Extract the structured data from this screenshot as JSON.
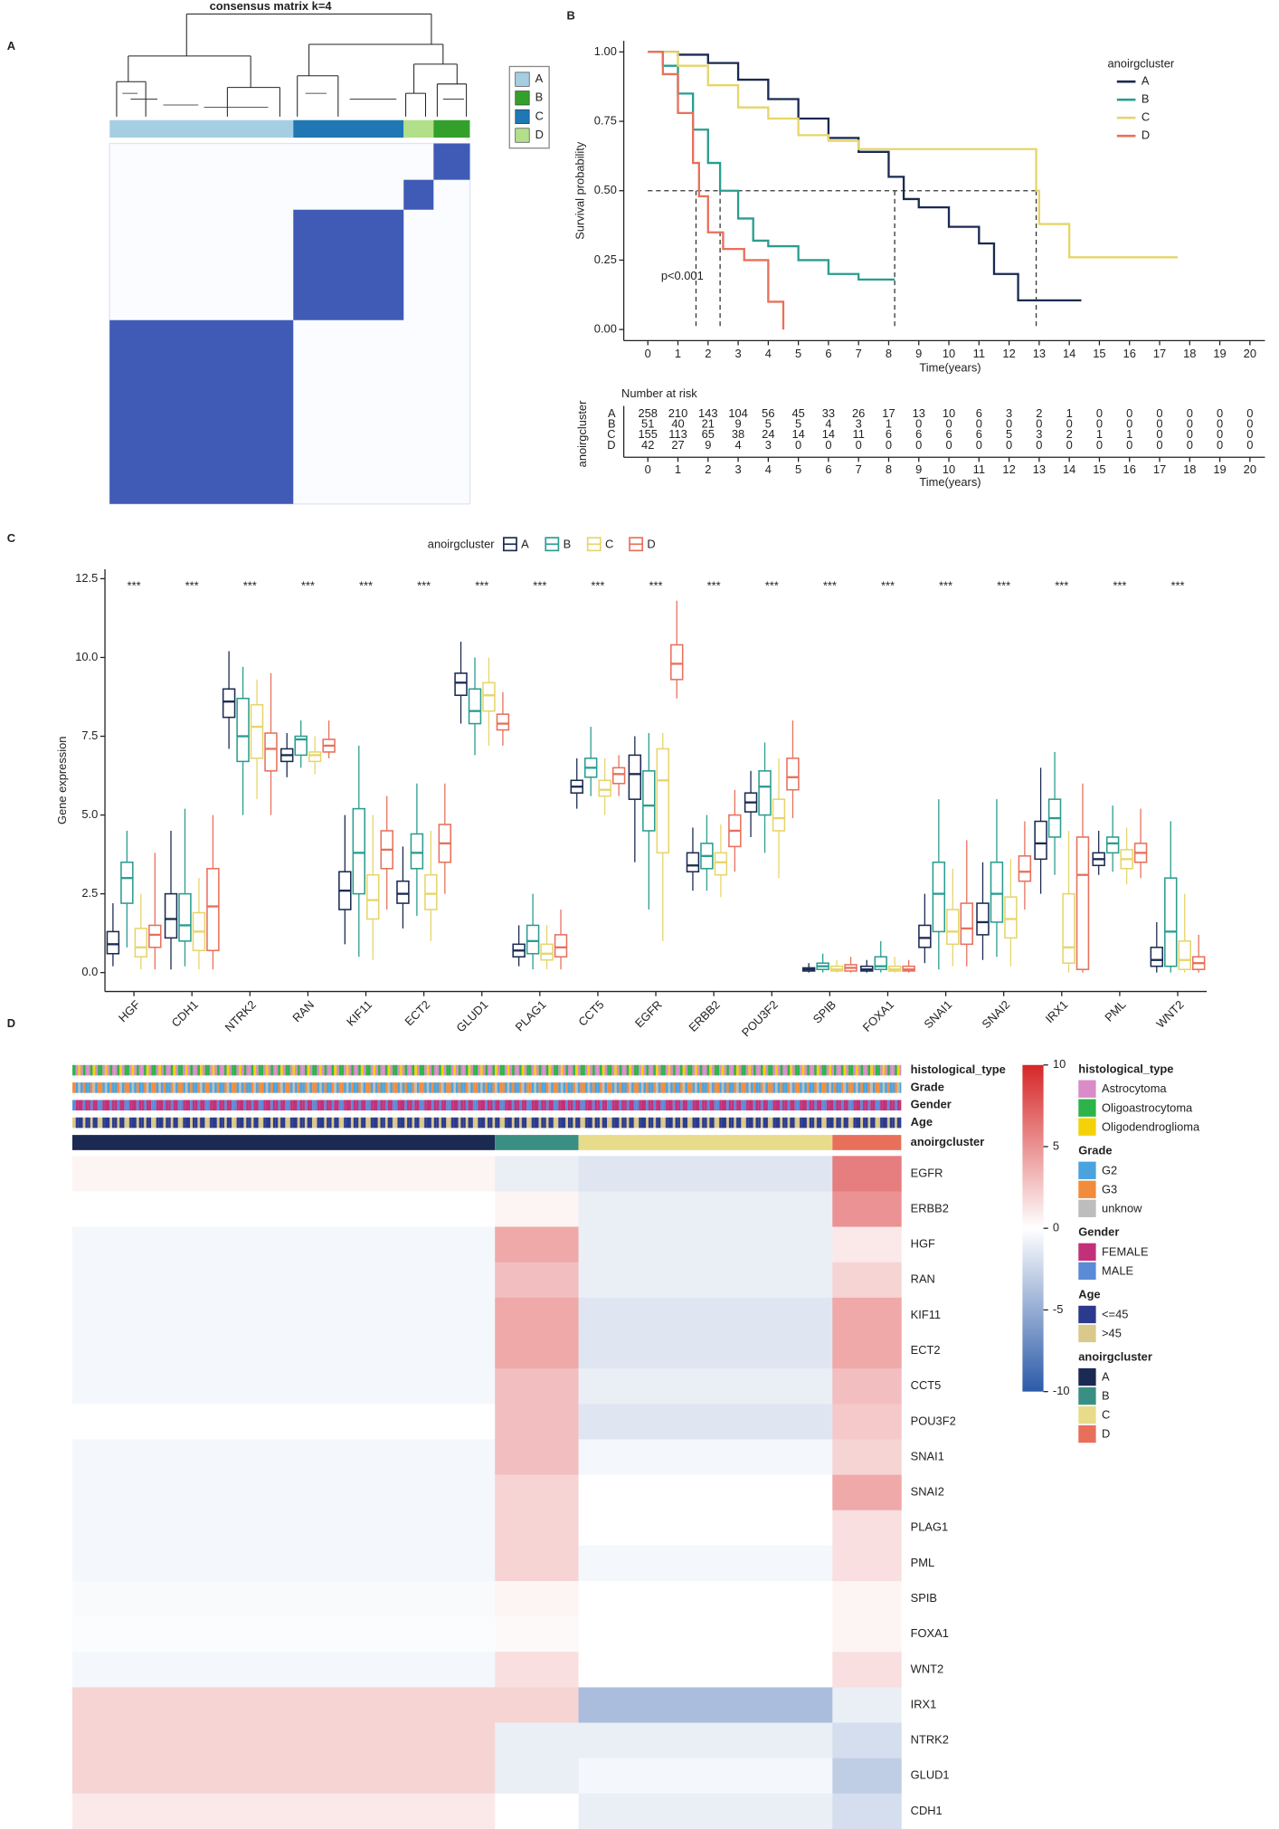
{
  "chart_data": [
    {
      "type": "consensus",
      "panel": "A",
      "title": "consensus matrix k=4",
      "matrix_color": "#3f5bb5",
      "clusters": [
        {
          "name": "A",
          "color": "#a6cee3",
          "size": 258
        },
        {
          "name": "C",
          "color": "#1f78b4",
          "size": 155
        },
        {
          "name": "D",
          "color": "#b2df8a",
          "size": 42
        },
        {
          "name": "B",
          "color": "#33a02c",
          "size": 51
        }
      ]
    },
    {
      "type": "survival",
      "panel": "B",
      "ylabel": "Survival probability",
      "xlabel": "Time(years)",
      "legend_title": "anoirgcluster",
      "annotation": "p<0.001",
      "xlim": [
        -0.8,
        20.5
      ],
      "xticks": [
        0,
        1,
        2,
        3,
        4,
        5,
        6,
        7,
        8,
        9,
        10,
        11,
        12,
        13,
        14,
        15,
        16,
        17,
        18,
        19,
        20
      ],
      "ylim": [
        -0.04,
        1.04
      ],
      "yticks": [
        {
          "value": 0,
          "label": "0.00"
        },
        {
          "value": 0.25,
          "label": "0.25"
        },
        {
          "value": 0.5,
          "label": "0.50"
        },
        {
          "value": 0.75,
          "label": "0.75"
        },
        {
          "value": 1,
          "label": "1.00"
        }
      ],
      "median_level": 0.5,
      "series": [
        {
          "name": "A",
          "color": "#1b2a52",
          "median": 8.2,
          "x": [
            0,
            1,
            2,
            3,
            4,
            5,
            6,
            7,
            8,
            8.5,
            9,
            10,
            11,
            11.5,
            12.3,
            14.4
          ],
          "values": [
            1,
            0.99,
            0.96,
            0.9,
            0.83,
            0.76,
            0.69,
            0.64,
            0.55,
            0.47,
            0.44,
            0.37,
            0.31,
            0.2,
            0.105,
            0.105
          ]
        },
        {
          "name": "B",
          "color": "#2a9d8f",
          "median": 2.4,
          "x": [
            0,
            0.5,
            1,
            1.5,
            2,
            2.4,
            3,
            3.5,
            4,
            5,
            6,
            7,
            8.2
          ],
          "values": [
            1,
            0.95,
            0.85,
            0.72,
            0.6,
            0.5,
            0.4,
            0.32,
            0.3,
            0.25,
            0.2,
            0.18,
            0.18
          ]
        },
        {
          "name": "C",
          "color": "#e6d56a",
          "median": 12.9,
          "x": [
            0,
            1,
            2,
            3,
            4,
            5,
            6,
            7,
            12.3,
            12.9,
            13,
            14,
            17.6
          ],
          "values": [
            1,
            0.95,
            0.88,
            0.8,
            0.76,
            0.7,
            0.68,
            0.65,
            0.65,
            0.5,
            0.38,
            0.26,
            0.26
          ]
        },
        {
          "name": "D",
          "color": "#e8705b",
          "median": 1.6,
          "x": [
            0,
            0.5,
            1,
            1.5,
            1.7,
            2,
            2.5,
            3,
            3.2,
            4,
            4.5
          ],
          "values": [
            1,
            0.92,
            0.78,
            0.6,
            0.48,
            0.35,
            0.29,
            0.29,
            0.25,
            0.1,
            0
          ]
        }
      ],
      "risk_table": {
        "title": "Number at risk",
        "ylabel": "anoirgcluster",
        "counts": [
          [
            258,
            210,
            143,
            104,
            56,
            45,
            33,
            26,
            17,
            13,
            10,
            6,
            3,
            2,
            1,
            0,
            0,
            0,
            0,
            0,
            0
          ],
          [
            51,
            40,
            21,
            9,
            5,
            5,
            4,
            3,
            1,
            0,
            0,
            0,
            0,
            0,
            0,
            0,
            0,
            0,
            0,
            0,
            0
          ],
          [
            155,
            113,
            65,
            38,
            24,
            14,
            14,
            11,
            6,
            6,
            6,
            6,
            5,
            3,
            2,
            1,
            1,
            0,
            0,
            0,
            0
          ],
          [
            42,
            27,
            9,
            4,
            3,
            0,
            0,
            0,
            0,
            0,
            0,
            0,
            0,
            0,
            0,
            0,
            0,
            0,
            0,
            0,
            0
          ]
        ]
      }
    },
    {
      "type": "box",
      "panel": "C",
      "ylabel": "Gene expression",
      "legend_title": "anoirgcluster",
      "categories": [
        "HGF",
        "CDH1",
        "NTRK2",
        "RAN",
        "KIF11",
        "ECT2",
        "GLUD1",
        "PLAG1",
        "CCT5",
        "EGFR",
        "ERBB2",
        "POU3F2",
        "SPIB",
        "FOXA1",
        "SNAI1",
        "SNAI2",
        "IRX1",
        "PML",
        "WNT2"
      ],
      "significance": [
        "***",
        "***",
        "***",
        "***",
        "***",
        "***",
        "***",
        "***",
        "***",
        "***",
        "***",
        "***",
        "***",
        "***",
        "***",
        "***",
        "***",
        "***",
        "***"
      ],
      "ylim": [
        -0.6,
        12.8
      ],
      "yticks": [
        {
          "value": 0,
          "label": "0.0"
        },
        {
          "value": 2.5,
          "label": "2.5"
        },
        {
          "value": 5,
          "label": "5.0"
        },
        {
          "value": 7.5,
          "label": "7.5"
        },
        {
          "value": 10,
          "label": "10.0"
        },
        {
          "value": 12.5,
          "label": "12.5"
        }
      ],
      "series": [
        {
          "name": "A",
          "color": "#1b2a52",
          "median": [
            0.9,
            1.7,
            8.6,
            6.9,
            2.6,
            2.5,
            9.2,
            0.7,
            5.9,
            6.3,
            3.4,
            5.4,
            0.1,
            0.1,
            1.1,
            1.6,
            4.1,
            3.6,
            0.4
          ],
          "q1": [
            0.6,
            1.1,
            8.1,
            6.7,
            2.0,
            2.2,
            8.8,
            0.5,
            5.7,
            5.5,
            3.2,
            5.1,
            0.05,
            0.05,
            0.8,
            1.2,
            3.6,
            3.4,
            0.2
          ],
          "q3": [
            1.3,
            2.5,
            9.0,
            7.1,
            3.2,
            2.9,
            9.5,
            0.9,
            6.1,
            6.9,
            3.8,
            5.7,
            0.15,
            0.2,
            1.5,
            2.2,
            4.8,
            3.8,
            0.8
          ],
          "low": [
            0.2,
            0.1,
            7.1,
            6.2,
            0.9,
            1.4,
            7.9,
            0.2,
            5.2,
            3.5,
            2.6,
            4.3,
            0,
            0,
            0.3,
            0.4,
            2.5,
            3.1,
            0
          ],
          "high": [
            2.2,
            4.5,
            10.2,
            7.6,
            5.0,
            4.0,
            10.5,
            1.5,
            6.8,
            7.5,
            4.6,
            6.4,
            0.3,
            0.4,
            2.5,
            3.5,
            6.5,
            4.5,
            1.6
          ]
        },
        {
          "name": "B",
          "color": "#2a9d8f",
          "median": [
            3.0,
            1.5,
            7.5,
            7.4,
            3.8,
            3.8,
            8.3,
            1.0,
            6.5,
            5.3,
            3.7,
            5.9,
            0.2,
            0.2,
            2.5,
            2.5,
            4.9,
            4.1,
            1.3
          ],
          "q1": [
            2.2,
            1.0,
            6.7,
            6.9,
            2.5,
            3.3,
            7.9,
            0.6,
            6.2,
            4.5,
            3.3,
            5.0,
            0.1,
            0.1,
            1.3,
            1.6,
            4.3,
            3.8,
            0.2
          ],
          "q3": [
            3.5,
            2.5,
            8.7,
            7.5,
            5.2,
            4.4,
            9.0,
            1.5,
            6.8,
            6.4,
            4.1,
            6.4,
            0.3,
            0.5,
            3.5,
            3.5,
            5.5,
            4.3,
            3.0
          ],
          "low": [
            0.8,
            0.2,
            5.0,
            6.5,
            0.5,
            1.8,
            6.9,
            0.1,
            5.6,
            2.0,
            2.6,
            3.8,
            0,
            0,
            0.1,
            0.5,
            3.1,
            3.2,
            0
          ],
          "high": [
            4.5,
            5.2,
            9.7,
            8.0,
            7.2,
            6.0,
            10.0,
            2.5,
            7.8,
            7.6,
            5.0,
            7.3,
            0.6,
            1.0,
            5.5,
            5.5,
            7.0,
            5.3,
            4.8
          ]
        },
        {
          "name": "C",
          "color": "#e6d56a",
          "median": [
            0.8,
            1.3,
            7.8,
            6.9,
            2.3,
            2.5,
            8.8,
            0.6,
            5.8,
            6.1,
            3.5,
            4.9,
            0.1,
            0.1,
            1.3,
            1.7,
            0.8,
            3.6,
            0.4
          ],
          "q1": [
            0.5,
            0.7,
            6.8,
            6.7,
            1.7,
            2.0,
            8.3,
            0.4,
            5.6,
            3.8,
            3.1,
            4.5,
            0.05,
            0.05,
            0.9,
            1.1,
            0.3,
            3.3,
            0.1
          ],
          "q3": [
            1.4,
            1.9,
            8.5,
            7.0,
            3.1,
            3.1,
            9.2,
            0.9,
            6.1,
            7.1,
            3.8,
            5.5,
            0.2,
            0.2,
            2.0,
            2.4,
            2.5,
            3.9,
            1.0
          ],
          "low": [
            0.1,
            0.1,
            5.5,
            6.3,
            0.4,
            1.0,
            7.2,
            0.1,
            5.0,
            1.0,
            2.4,
            3.0,
            0,
            0,
            0.2,
            0.2,
            0,
            2.8,
            0
          ],
          "high": [
            2.5,
            3.0,
            9.3,
            7.5,
            5.0,
            4.5,
            10.0,
            1.5,
            6.8,
            7.6,
            4.7,
            6.8,
            0.4,
            0.5,
            3.3,
            3.6,
            4.5,
            4.6,
            2.5
          ]
        },
        {
          "name": "D",
          "color": "#e8705b",
          "median": [
            1.2,
            2.1,
            7.1,
            7.2,
            3.9,
            4.1,
            7.9,
            0.8,
            6.3,
            9.8,
            4.5,
            6.2,
            0.15,
            0.1,
            1.4,
            3.2,
            3.1,
            3.8,
            0.3
          ],
          "q1": [
            0.8,
            0.7,
            6.4,
            7.0,
            3.3,
            3.5,
            7.7,
            0.5,
            6.0,
            9.3,
            4.0,
            5.8,
            0.05,
            0.05,
            0.9,
            2.9,
            0.1,
            3.5,
            0.1
          ],
          "q3": [
            1.5,
            3.3,
            7.6,
            7.4,
            4.5,
            4.7,
            8.2,
            1.2,
            6.5,
            10.4,
            5.0,
            6.8,
            0.25,
            0.2,
            2.2,
            3.7,
            4.3,
            4.1,
            0.5
          ],
          "low": [
            0.1,
            0.1,
            5.0,
            6.8,
            2.0,
            2.5,
            7.2,
            0.1,
            5.6,
            8.7,
            3.2,
            4.9,
            0,
            0,
            0.2,
            2.0,
            0,
            3.0,
            0
          ],
          "high": [
            3.8,
            5.0,
            9.5,
            8.0,
            5.6,
            6.0,
            8.9,
            2.0,
            6.9,
            11.8,
            5.8,
            8.0,
            0.5,
            0.4,
            4.2,
            4.8,
            6.0,
            5.2,
            1.2
          ]
        }
      ]
    },
    {
      "type": "heatmap",
      "panel": "D",
      "rows": [
        "EGFR",
        "ERBB2",
        "HGF",
        "RAN",
        "KIF11",
        "ECT2",
        "CCT5",
        "POU3F2",
        "SNAI1",
        "SNAI2",
        "PLAG1",
        "PML",
        "SPIB",
        "FOXA1",
        "WNT2",
        "IRX1",
        "NTRK2",
        "GLUD1",
        "CDH1"
      ],
      "values": [
        [
          0.5,
          -1,
          -1.5,
          6
        ],
        [
          0,
          0.5,
          -1,
          5
        ],
        [
          -0.5,
          4,
          -1,
          1
        ],
        [
          -0.5,
          3,
          -1,
          2
        ],
        [
          -0.5,
          4,
          -1.5,
          4
        ],
        [
          -0.5,
          4,
          -1.5,
          4
        ],
        [
          -0.5,
          3,
          -1,
          3
        ],
        [
          0,
          3,
          -1.5,
          2.5
        ],
        [
          -0.5,
          3,
          -0.5,
          2
        ],
        [
          -0.5,
          2,
          0,
          4
        ],
        [
          -0.5,
          2,
          0,
          1.5
        ],
        [
          -0.5,
          2,
          -0.5,
          1.5
        ],
        [
          -0.3,
          0.5,
          0,
          0.5
        ],
        [
          -0.2,
          0.3,
          0,
          0.5
        ],
        [
          -0.5,
          1.5,
          0,
          1.5
        ],
        [
          2,
          2,
          -4,
          -1
        ],
        [
          2,
          -1,
          -1,
          -2
        ],
        [
          2,
          -1,
          -0.5,
          -3
        ],
        [
          1,
          0,
          -1,
          -2
        ]
      ],
      "colorbar": {
        "lim": [
          -10,
          10
        ],
        "ticks": [
          -10,
          -5,
          0,
          5,
          10
        ],
        "colors": [
          "#2c5aa8",
          "#ffffff",
          "#d62728"
        ]
      },
      "tracks": [
        {
          "name": "histological_type",
          "items": [
            {
              "name": "Astrocytoma",
              "color": "#d98cc7"
            },
            {
              "name": "Oligoastrocytoma",
              "color": "#2db34a"
            },
            {
              "name": "Oligodendroglioma",
              "color": "#f5d10a"
            }
          ]
        },
        {
          "name": "Grade",
          "items": [
            {
              "name": "G2",
              "color": "#4aa3df"
            },
            {
              "name": "G3",
              "color": "#f28c3c"
            },
            {
              "name": "unknow",
              "color": "#bdbdbd"
            }
          ]
        },
        {
          "name": "Gender",
          "items": [
            {
              "name": "FEMALE",
              "color": "#c2307a"
            },
            {
              "name": "MALE",
              "color": "#5b8bd6"
            }
          ]
        },
        {
          "name": "Age",
          "items": [
            {
              "name": "<=45",
              "color": "#2b3a8c"
            },
            {
              "name": ">45",
              "color": "#d9c98a"
            }
          ]
        },
        {
          "name": "anoirgcluster",
          "items": [
            {
              "name": "A",
              "color": "#1b2a52",
              "size": 258
            },
            {
              "name": "B",
              "color": "#3a8f85",
              "size": 51
            },
            {
              "name": "C",
              "color": "#e8dc8a",
              "size": 155
            },
            {
              "name": "D",
              "color": "#e8705b",
              "size": 42
            }
          ]
        }
      ]
    }
  ]
}
